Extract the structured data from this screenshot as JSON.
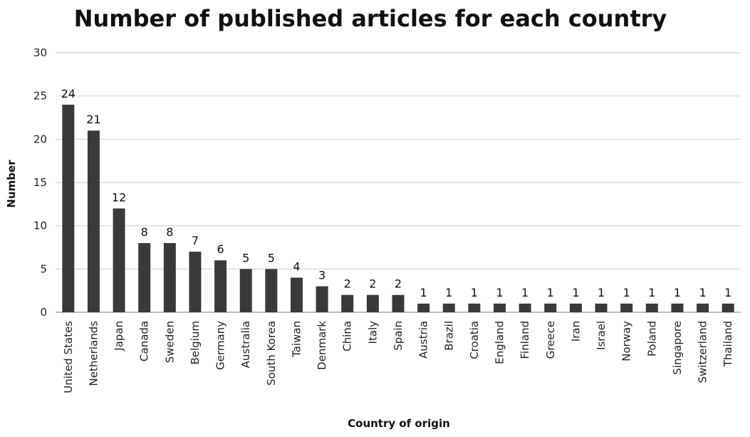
{
  "chart_data": {
    "type": "bar",
    "title": "Number of published articles for each country",
    "xlabel": "Country of origin",
    "ylabel": "Number",
    "ylim": [
      0,
      30
    ],
    "yticks": [
      0,
      5,
      10,
      15,
      20,
      25,
      30
    ],
    "grid": true,
    "legend": "none",
    "bar_color": "#3a3a3a",
    "categories": [
      "United States",
      "Netherlands",
      "Japan",
      "Canada",
      "Sweden",
      "Belgium",
      "Germany",
      "Australia",
      "South Korea",
      "Taiwan",
      "Denmark",
      "China",
      "Italy",
      "Spain",
      "Austria",
      "Brazil",
      "Croatia",
      "England",
      "Finland",
      "Greece",
      "Iran",
      "Israel",
      "Norway",
      "Poland",
      "Singapore",
      "Switzerland",
      "Thailand"
    ],
    "values": [
      24,
      21,
      12,
      8,
      8,
      7,
      6,
      5,
      5,
      4,
      3,
      2,
      2,
      2,
      1,
      1,
      1,
      1,
      1,
      1,
      1,
      1,
      1,
      1,
      1,
      1,
      1
    ]
  }
}
